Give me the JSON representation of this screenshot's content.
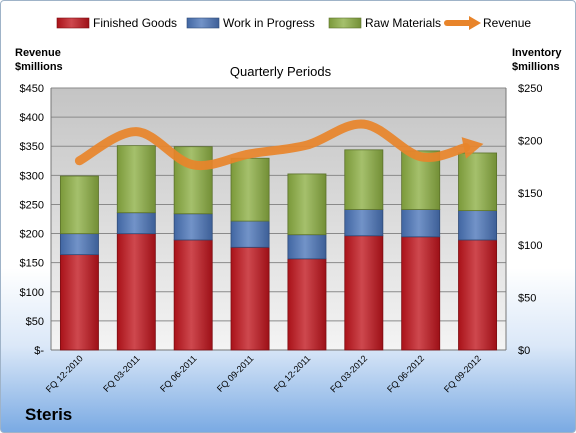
{
  "company": "Steris",
  "chart_data": {
    "type": "bar",
    "subtype": "stacked-bar with line overlay",
    "title": "Quarterly Periods",
    "ylabel_left": [
      "Revenue",
      "$millions"
    ],
    "ylabel_right": [
      "Inventory",
      "$millions"
    ],
    "categories": [
      "FQ 12-2010",
      "FQ 03-2011",
      "FQ 06-2011",
      "FQ 09-2011",
      "FQ 12-2011",
      "FQ 03-2012",
      "FQ 06-2012",
      "FQ 09-2012"
    ],
    "series": [
      {
        "name": "Finished Goods",
        "axis": "right",
        "color": "#c0141c",
        "values": [
          91,
          111,
          105,
          98,
          87,
          109,
          108,
          105
        ]
      },
      {
        "name": "Work in Progress",
        "axis": "right",
        "color": "#4a74b8",
        "values": [
          20,
          20,
          25,
          25,
          23,
          25,
          26,
          28
        ]
      },
      {
        "name": "Raw Materials",
        "axis": "right",
        "color": "#8cae42",
        "values": [
          55,
          64,
          64,
          60,
          58,
          57,
          56,
          55
        ]
      },
      {
        "name": "Revenue",
        "axis": "left",
        "type": "line",
        "color": "#e8842a",
        "values": [
          325,
          375,
          318,
          337,
          352,
          388,
          332,
          352
        ]
      }
    ],
    "left_ticks": [
      "$-",
      "$50",
      "$100",
      "$150",
      "$200",
      "$250",
      "$300",
      "$350",
      "$400",
      "$450"
    ],
    "right_ticks": [
      "$0",
      "$50",
      "$100",
      "$150",
      "$200",
      "$250"
    ],
    "ylim_left": [
      0,
      450
    ],
    "ylim_right": [
      0,
      250
    ],
    "grid": true,
    "legend_position": "top"
  }
}
